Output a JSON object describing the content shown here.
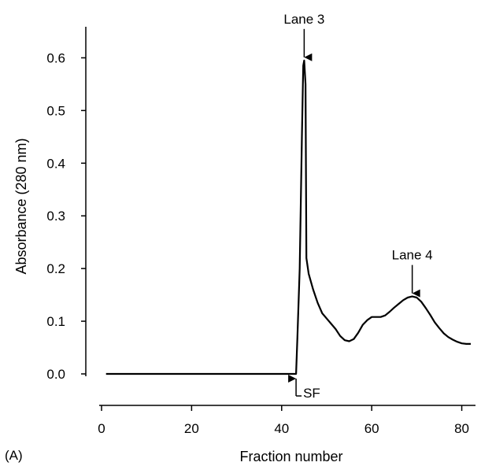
{
  "chart_data": {
    "type": "line",
    "panel_label": "(A)",
    "title": "",
    "xlabel": "Fraction number",
    "ylabel": "Absorbance (280 nm)",
    "xlim": [
      0,
      82
    ],
    "ylim": [
      0,
      0.65
    ],
    "x_ticks": [
      0,
      20,
      40,
      60,
      80
    ],
    "x_tick_labels": [
      "0",
      "20",
      "40",
      "60",
      "80"
    ],
    "y_ticks": [
      0.0,
      0.1,
      0.2,
      0.3,
      0.4,
      0.5,
      0.6
    ],
    "y_tick_labels": [
      "0.0",
      "0.1",
      "0.2",
      "0.3",
      "0.4",
      "0.5",
      "0.6"
    ],
    "grid": false,
    "line_color": "#000000",
    "series": [
      {
        "x": [
          1,
          10,
          20,
          30,
          40,
          43.2,
          43.5,
          44.0,
          44.5,
          44.8,
          45.0,
          45.3,
          45.5,
          46.0,
          47,
          48,
          49,
          50,
          51,
          52,
          53,
          54,
          55,
          56,
          57,
          58,
          59,
          60,
          61,
          62,
          63,
          64,
          65,
          66,
          67,
          68,
          69,
          70,
          71,
          72,
          73,
          74,
          75,
          76,
          77,
          78,
          79,
          80,
          81,
          82
        ],
        "y": [
          0.0,
          0.0,
          0.0,
          0.0,
          0.0,
          0.0,
          0.07,
          0.2,
          0.45,
          0.585,
          0.595,
          0.55,
          0.22,
          0.19,
          0.16,
          0.135,
          0.115,
          0.105,
          0.095,
          0.085,
          0.072,
          0.064,
          0.062,
          0.066,
          0.078,
          0.093,
          0.102,
          0.108,
          0.108,
          0.108,
          0.111,
          0.118,
          0.126,
          0.133,
          0.14,
          0.145,
          0.147,
          0.145,
          0.137,
          0.125,
          0.112,
          0.098,
          0.087,
          0.077,
          0.07,
          0.065,
          0.061,
          0.058,
          0.057,
          0.057
        ]
      }
    ],
    "annotations": [
      {
        "text": "Lane 3",
        "x": 45,
        "y": 0.595,
        "arrow": "down"
      },
      {
        "text": "Lane 4",
        "x": 69,
        "y": 0.147,
        "arrow": "down"
      },
      {
        "text": "SF",
        "x": 43.2,
        "y": 0.0,
        "arrow": "up"
      }
    ]
  }
}
